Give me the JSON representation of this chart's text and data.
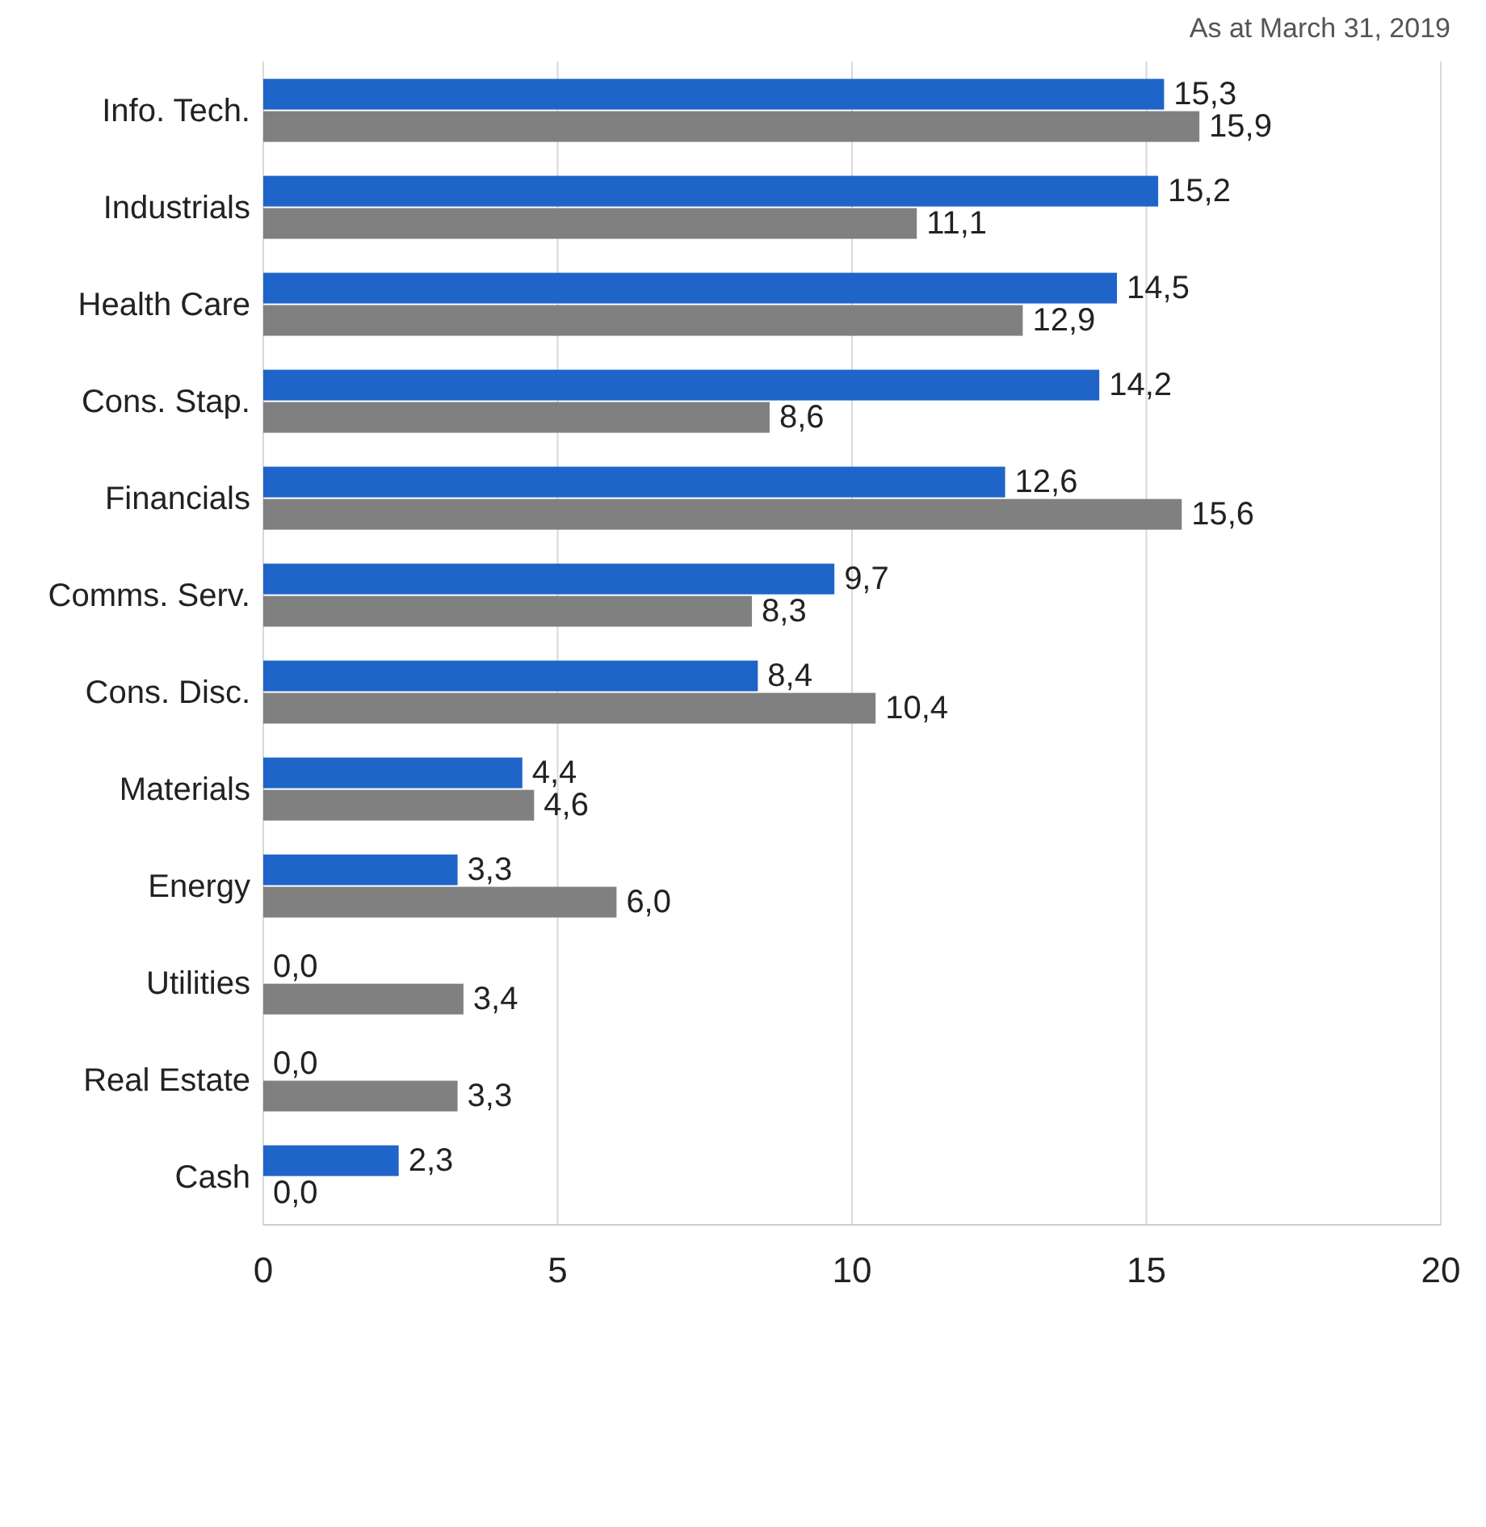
{
  "chart_data": {
    "type": "bar",
    "orientation": "horizontal",
    "categories": [
      "Info. Tech.",
      "Industrials",
      "Health Care",
      "Cons. Stap.",
      "Financials",
      "Comms. Serv.",
      "Cons. Disc.",
      "Materials",
      "Energy",
      "Utilities",
      "Real Estate",
      "Cash"
    ],
    "series": [
      {
        "color": "#1f64c8",
        "values": [
          15.3,
          15.2,
          14.5,
          14.2,
          12.6,
          9.7,
          8.4,
          4.4,
          3.3,
          0.0,
          0.0,
          2.3
        ],
        "value_labels": [
          "15,3",
          "15,2",
          "14,5",
          "14,2",
          "12,6",
          "9,7",
          "8,4",
          "4,4",
          "3,3",
          "0,0",
          "0,0",
          "2,3"
        ]
      },
      {
        "color": "#808080",
        "values": [
          15.9,
          11.1,
          12.9,
          8.6,
          15.6,
          8.3,
          10.4,
          4.6,
          6.0,
          3.4,
          3.3,
          0.0
        ],
        "value_labels": [
          "15,9",
          "11,1",
          "12,9",
          "8,6",
          "15,6",
          "8,3",
          "10,4",
          "4,6",
          "6,0",
          "3,4",
          "3,3",
          "0,0"
        ]
      }
    ],
    "xlim": [
      0,
      20
    ],
    "xticks": [
      0,
      5,
      10,
      15,
      20
    ],
    "grid": "x",
    "legend": false,
    "annotations": [
      "As at March 31, 2019"
    ]
  }
}
